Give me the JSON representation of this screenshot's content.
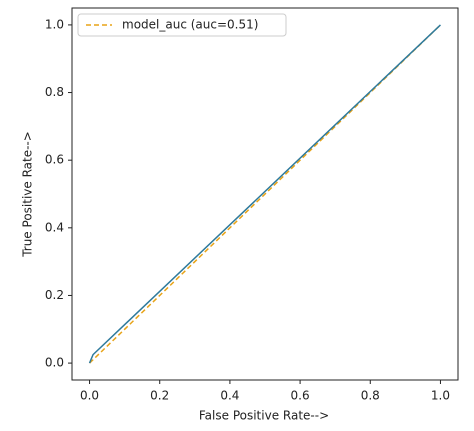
{
  "chart_data": {
    "type": "line",
    "xlabel": "False Positive Rate-->",
    "ylabel": "True Positive Rate-->",
    "series": [
      {
        "name": "model_auc (auc=0.51)",
        "color": "#e8a317",
        "dash": true,
        "x": [
          0,
          1
        ],
        "values": [
          0,
          1
        ]
      },
      {
        "color": "#2e7a9c",
        "dash": false,
        "x": [
          0,
          0.01,
          1
        ],
        "values": [
          0,
          0.025,
          1
        ]
      }
    ],
    "xlim": [
      -0.05,
      1.05
    ],
    "ylim": [
      -0.05,
      1.05
    ],
    "xticks": [
      {
        "value": 0,
        "label": "0.0"
      },
      0.2,
      0.4,
      0.6,
      0.8,
      {
        "value": 1,
        "label": "1.0"
      }
    ],
    "yticks": [
      {
        "value": 0,
        "label": "0.0"
      },
      0.2,
      0.4,
      0.6,
      0.8,
      {
        "value": 1,
        "label": "1.0"
      }
    ],
    "legend": "upper left"
  }
}
